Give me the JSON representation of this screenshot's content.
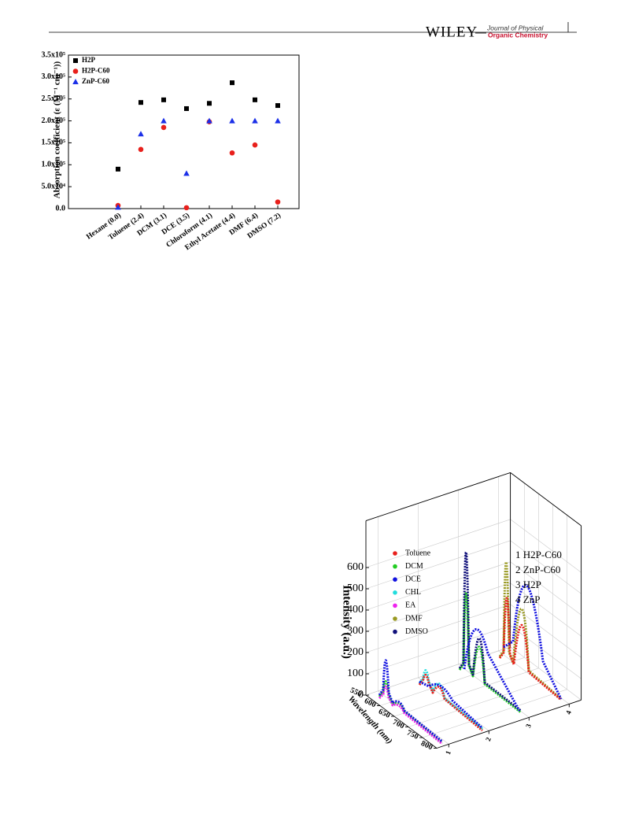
{
  "header": {
    "publisher": "WILEY",
    "journal_line1": "Journal of Physical",
    "journal_line2": "Organic Chemistry"
  },
  "chart_data": [
    {
      "type": "scatter",
      "ylabel": "Absorption coefficient (ε (M⁻¹ cm⁻¹))",
      "categories": [
        "Hexane (0.0)",
        "Toluene (2.4)",
        "DCM (3.1)",
        "DCE (3.5)",
        "Chloroform (4.1)",
        "Ethyl Acetate (4.4)",
        "DMF (6.4)",
        "DMSO (7.2)"
      ],
      "series": [
        {
          "name": "H2P",
          "color": "#000000",
          "marker": "square",
          "values": [
            90000,
            242000,
            248000,
            228000,
            240000,
            287000,
            248000,
            235000
          ]
        },
        {
          "name": "H2P-C60",
          "color": "#e8201c",
          "marker": "circle",
          "values": [
            7000,
            135000,
            185000,
            2000,
            198000,
            127000,
            145000,
            15000
          ]
        },
        {
          "name": "ZnP-C60",
          "color": "#1c30e8",
          "marker": "triangle",
          "values": [
            3000,
            170000,
            200000,
            80000,
            200000,
            200000,
            200000,
            200000
          ]
        }
      ],
      "ylim": [
        0,
        350000
      ],
      "yticks": [
        {
          "value": 0,
          "label": "0.0"
        },
        {
          "value": 50000,
          "label": "5.0x10⁴"
        },
        {
          "value": 100000,
          "label": "1.0x10⁵"
        },
        {
          "value": 150000,
          "label": "1.5x10⁵"
        },
        {
          "value": 200000,
          "label": "2.0x10⁵"
        },
        {
          "value": 250000,
          "label": "2.5x10⁵"
        },
        {
          "value": 300000,
          "label": "3.0x10⁵"
        },
        {
          "value": 350000,
          "label": "3.5x10⁵"
        }
      ],
      "legend": "upper left"
    },
    {
      "type": "3d-line",
      "zlabel": "Intensity (a.u.)",
      "ylabel": "Wavelength (nm)",
      "series": [
        {
          "name": "Toluene",
          "color": "#e8201c"
        },
        {
          "name": "DCM",
          "color": "#22cc22"
        },
        {
          "name": "DCE",
          "color": "#1010e0"
        },
        {
          "name": "CHL",
          "color": "#22dddd"
        },
        {
          "name": "EA",
          "color": "#ee22ee"
        },
        {
          "name": "DMF",
          "color": "#999922"
        },
        {
          "name": "DMSO",
          "color": "#10107a"
        }
      ],
      "annotations": [
        "1 H2P-C60",
        "2 ZnP-C60",
        "3 H2P",
        "4 ZnP"
      ],
      "zlim": [
        0,
        820
      ],
      "zticks": [
        0,
        100,
        200,
        300,
        400,
        500,
        600
      ],
      "ylim": [
        550,
        800
      ],
      "yticks": [
        550,
        600,
        650,
        700,
        750,
        800
      ],
      "xlim": [
        0.7,
        4.3
      ],
      "xticks": [
        1,
        2,
        3,
        4
      ]
    }
  ]
}
